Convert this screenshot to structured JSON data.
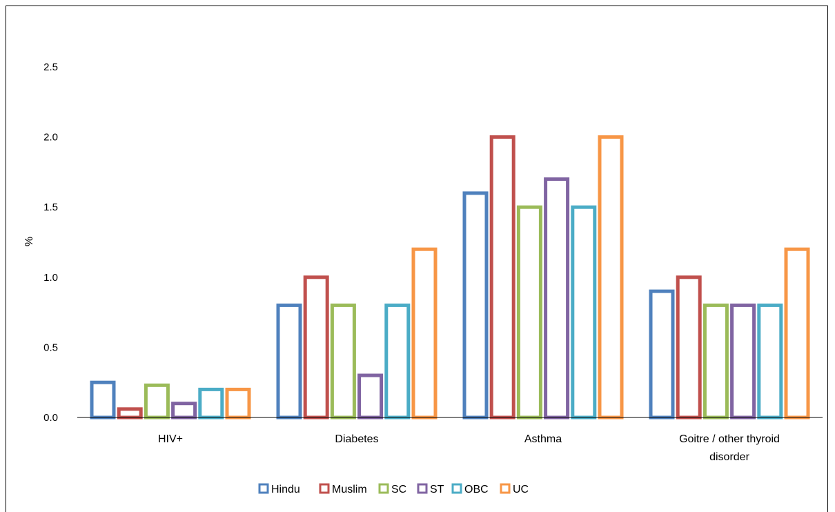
{
  "chart_data": {
    "type": "bar",
    "title": "",
    "xlabel": "",
    "ylabel": "%",
    "ylim": [
      0,
      2.5
    ],
    "yticks": [
      "0.0",
      "0.5",
      "1.0",
      "1.5",
      "2.0",
      "2.5"
    ],
    "grid": false,
    "legend_position": "bottom",
    "bar_style": "outline",
    "categories": [
      [
        "HIV+"
      ],
      [
        "Diabetes"
      ],
      [
        "Asthma"
      ],
      [
        "Goitre / other thyroid",
        "disorder"
      ]
    ],
    "series": [
      {
        "name": "Hindu",
        "color": "#4F81BD",
        "values": [
          0.25,
          0.8,
          1.6,
          0.9
        ]
      },
      {
        "name": "Muslim",
        "color": "#C0504D",
        "values": [
          0.06,
          1.0,
          2.0,
          1.0
        ]
      },
      {
        "name": "SC",
        "color": "#9BBB59",
        "values": [
          0.23,
          0.8,
          1.5,
          0.8
        ]
      },
      {
        "name": "ST",
        "color": "#8064A2",
        "values": [
          0.1,
          0.3,
          1.7,
          0.8
        ]
      },
      {
        "name": "OBC",
        "color": "#4BACC6",
        "values": [
          0.2,
          0.8,
          1.5,
          0.8
        ]
      },
      {
        "name": "UC",
        "color": "#F79646",
        "values": [
          0.2,
          1.2,
          2.0,
          1.2
        ]
      }
    ]
  }
}
